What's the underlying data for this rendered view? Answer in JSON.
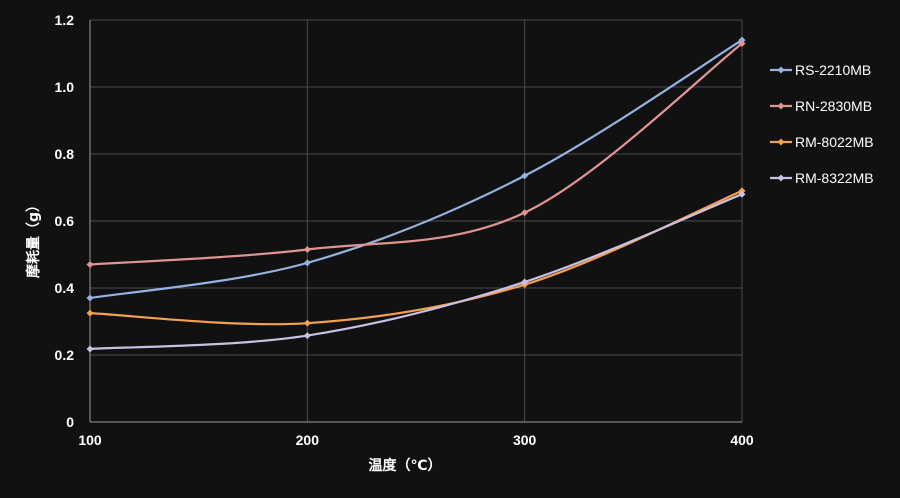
{
  "chart_data": {
    "type": "line",
    "title": "",
    "xlabel": "温度（℃）",
    "ylabel": "摩耗量（g）",
    "x": [
      100,
      200,
      300,
      400
    ],
    "x_ticks": [
      "100",
      "200",
      "300",
      "400"
    ],
    "xlim": [
      100,
      400
    ],
    "ylim": [
      0,
      1.2
    ],
    "y_ticks": [
      "0",
      "0.2",
      "0.4",
      "0.6",
      "0.8",
      "1.0",
      "1.2"
    ],
    "grid": true,
    "legend_position": "right",
    "series": [
      {
        "name": "RS-2210MB",
        "color": "#95b3e0",
        "values": [
          0.37,
          0.475,
          0.735,
          1.14
        ]
      },
      {
        "name": "RN-2830MB",
        "color": "#e09494",
        "values": [
          0.47,
          0.515,
          0.625,
          1.13
        ]
      },
      {
        "name": "RM-8022MB",
        "color": "#f4a050",
        "values": [
          0.325,
          0.295,
          0.41,
          0.69
        ]
      },
      {
        "name": "RM-8322MB",
        "color": "#c9c0e3",
        "values": [
          0.218,
          0.258,
          0.418,
          0.68
        ]
      }
    ]
  }
}
